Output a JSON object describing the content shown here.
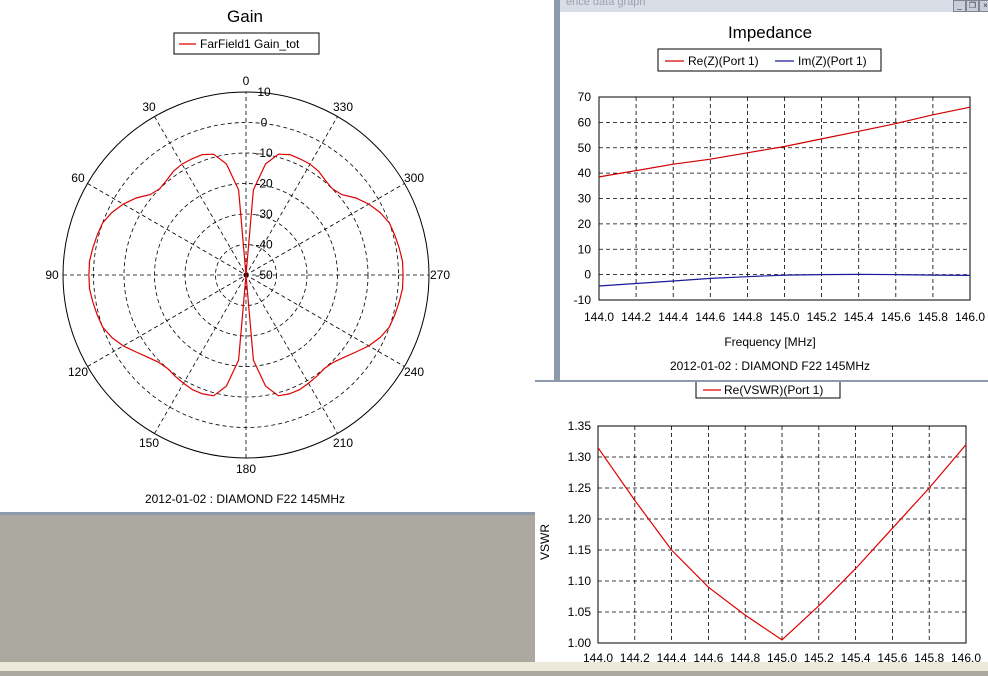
{
  "gain": {
    "title": "Gain",
    "legend": "FarField1 Gain_tot",
    "footer": "2012-01-02 : DIAMOND F22 145MHz",
    "radial_labels": [
      "10",
      "0",
      "-10",
      "-20",
      "-30",
      "-40",
      "-50"
    ],
    "angle_labels": [
      "0",
      "30",
      "60",
      "90",
      "120",
      "150",
      "180",
      "210",
      "240",
      "270",
      "300",
      "330"
    ],
    "color": "#e00000"
  },
  "impedance": {
    "window_title": "ence data graph",
    "title": "Impedance",
    "legend": [
      "Re(Z)(Port 1)",
      "Im(Z)(Port 1)"
    ],
    "xlabel": "Frequency [MHz]",
    "footer": "2012-01-02 : DIAMOND F22 145MHz",
    "xticks": [
      "144.0",
      "144.2",
      "144.4",
      "144.6",
      "144.8",
      "145.0",
      "145.2",
      "145.4",
      "145.6",
      "145.8",
      "146.0"
    ],
    "yticks": [
      "70",
      "60",
      "50",
      "40",
      "30",
      "20",
      "10",
      "0",
      "-10"
    ]
  },
  "vswr": {
    "legend": "Re(VSWR)(Port 1)",
    "ylabel": "VSWR",
    "xticks": [
      "144.0",
      "144.2",
      "144.4",
      "144.6",
      "144.8",
      "145.0",
      "145.2",
      "145.4",
      "145.6",
      "145.8",
      "146.0"
    ],
    "yticks": [
      "1.35",
      "1.30",
      "1.25",
      "1.20",
      "1.15",
      "1.10",
      "1.05",
      "1.00"
    ]
  },
  "chart_data": [
    {
      "type": "line",
      "title": "Gain",
      "polar": true,
      "radial_range_dB": [
        -50,
        10
      ],
      "series": [
        {
          "name": "FarField1 Gain_tot",
          "color": "#e00000",
          "theta_deg": [
            0,
            5,
            10,
            15,
            20,
            25,
            30,
            35,
            40,
            45,
            50,
            55,
            60,
            65,
            70,
            75,
            80,
            85,
            90,
            95,
            100,
            105,
            110,
            115,
            120,
            125,
            130,
            135,
            140,
            145,
            150,
            155,
            160,
            165,
            170,
            175,
            180
          ],
          "gain_db": [
            -50,
            -22,
            -13,
            -9,
            -8,
            -8,
            -8,
            -8.5,
            -9.5,
            -10,
            -9,
            -6,
            -3.5,
            -1.5,
            0,
            0.5,
            1,
            1.5,
            1.5,
            1.5,
            1,
            0.5,
            0,
            -1.5,
            -3.5,
            -6,
            -8,
            -9.5,
            -10,
            -9.5,
            -9,
            -8.5,
            -8.5,
            -9,
            -13,
            -22,
            -50
          ]
        }
      ]
    },
    {
      "type": "line",
      "title": "Impedance",
      "xlabel": "Frequency [MHz]",
      "ylabel": "",
      "xlim": [
        144.0,
        146.0
      ],
      "ylim": [
        -10,
        70
      ],
      "grid": true,
      "legend": "top",
      "x": [
        144.0,
        144.2,
        144.4,
        144.6,
        144.8,
        145.0,
        145.2,
        145.4,
        145.6,
        145.8,
        146.0
      ],
      "series": [
        {
          "name": "Re(Z)(Port 1)",
          "color": "#d00000",
          "values": [
            38.5,
            41,
            43.5,
            45.5,
            48,
            50.5,
            53.5,
            56.5,
            59.5,
            63,
            66
          ]
        },
        {
          "name": "Im(Z)(Port 1)",
          "color": "#1a1a9a",
          "values": [
            -4.5,
            -3.5,
            -2.5,
            -1.5,
            -0.8,
            -0.2,
            0,
            0.1,
            0,
            -0.2,
            -0.3
          ]
        }
      ]
    },
    {
      "type": "line",
      "title": "",
      "xlabel": "",
      "ylabel": "VSWR",
      "xlim": [
        144.0,
        146.0
      ],
      "ylim": [
        1.0,
        1.35
      ],
      "grid": true,
      "legend": "top",
      "x": [
        144.0,
        144.2,
        144.4,
        144.6,
        144.8,
        145.0,
        145.2,
        145.4,
        145.6,
        145.8,
        146.0
      ],
      "series": [
        {
          "name": "Re(VSWR)(Port 1)",
          "color": "#e00000",
          "values": [
            1.315,
            1.23,
            1.15,
            1.09,
            1.045,
            1.005,
            1.06,
            1.12,
            1.185,
            1.25,
            1.32
          ]
        }
      ]
    }
  ]
}
